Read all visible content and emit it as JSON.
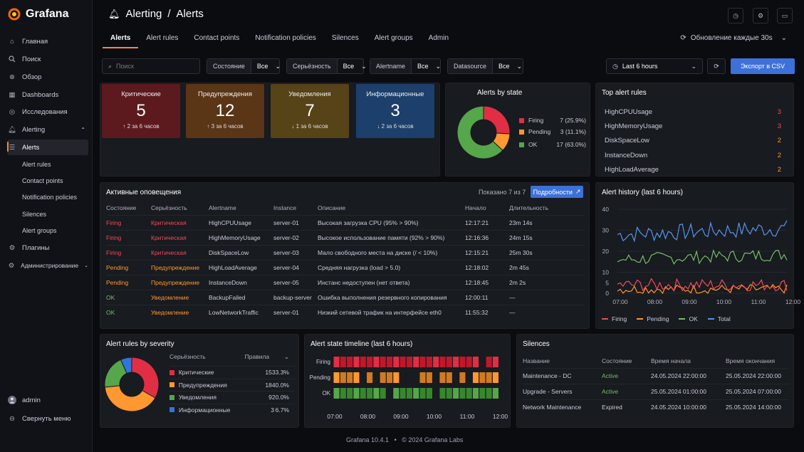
{
  "app": {
    "name": "Grafana",
    "footer_version": "Grafana 10.4.1",
    "footer_sep": "•",
    "footer_copy": "© 2024 Grafana Labs"
  },
  "nav": {
    "items": [
      {
        "label": "Главная",
        "icon": "home-icon"
      },
      {
        "label": "Поиск",
        "icon": "search-icon"
      },
      {
        "label": "Обзор",
        "icon": "plus-circle-icon"
      },
      {
        "label": "Dashboards",
        "icon": "grid-icon"
      },
      {
        "label": "Исследования",
        "icon": "compass-icon"
      },
      {
        "label": "Alerting",
        "icon": "bell-icon"
      }
    ],
    "sub": [
      "Alerts",
      "Alert rules",
      "Contact points",
      "Notification policies",
      "Silences",
      "Alert groups"
    ],
    "plugins": "Плагины",
    "admin": "Администрирование",
    "user": "admin",
    "collapse": "Свернуть меню"
  },
  "header": {
    "section": "Alerting",
    "sep": "/",
    "page": "Alerts"
  },
  "tabs": [
    "Alerts",
    "Alert rules",
    "Contact points",
    "Notification policies",
    "Silences",
    "Alert groups",
    "Admin"
  ],
  "refresh": "Обновление каждые 30s",
  "filters": {
    "search_placeholder": "Поиск",
    "state_label": "Состояние",
    "state_value": "Все",
    "severity_label": "Серьёзность",
    "severity_value": "Все",
    "alertname_label": "Alertname",
    "alertname_value": "Все",
    "datasource_label": "Datasource",
    "datasource_value": "Все",
    "time_range": "Last 6 hours",
    "export": "Экспорт в CSV"
  },
  "stats": [
    {
      "label": "Критические",
      "value": "5",
      "sub": "↑ 2 за 6 часов",
      "color": "#5c1a1f"
    },
    {
      "label": "Предупреждения",
      "value": "12",
      "sub": "↑ 3 за 6 часов",
      "color": "#5a3516"
    },
    {
      "label": "Уведомления",
      "value": "7",
      "sub": "↓ 1 за 6 часов",
      "color": "#574318"
    },
    {
      "label": "Информационные",
      "value": "3",
      "sub": "↓ 2 за 6 часов",
      "color": "#1d3f6b"
    }
  ],
  "alerts_by_state": {
    "title": "Alerts by state",
    "items": [
      {
        "name": "Firing",
        "value": 7,
        "pct": "7 (25.9%)",
        "color": "#e02f44"
      },
      {
        "name": "Pending",
        "value": 3,
        "pct": "3 (11.1%)",
        "color": "#ff9830"
      },
      {
        "name": "OK",
        "value": 17,
        "pct": "17 (63.0%)",
        "color": "#56a64b"
      }
    ]
  },
  "top_rules": {
    "title": "Top alert rules",
    "items": [
      {
        "name": "HighCPUUsage",
        "count": "3",
        "color": "#f2495c"
      },
      {
        "name": "HighMemoryUsage",
        "count": "3",
        "color": "#f2495c"
      },
      {
        "name": "DiskSpaceLow",
        "count": "2",
        "color": "#ff9830"
      },
      {
        "name": "InstanceDown",
        "count": "2",
        "color": "#ff9830"
      },
      {
        "name": "HighLoadAverage",
        "count": "2",
        "color": "#ff9830"
      }
    ]
  },
  "active": {
    "title": "Активные оповещения",
    "shown": "Показано 7 из 7",
    "details": "Подробности",
    "columns": [
      "Состояние",
      "Серьёзность",
      "Alertname",
      "Instance",
      "Описание",
      "Начало",
      "Длительность"
    ],
    "rows": [
      {
        "state": "Firing",
        "sev": "Критическая",
        "name": "HighCPUUsage",
        "inst": "server-01",
        "desc": "Высокая загрузка CPU (95% > 90%)",
        "start": "12:17:21",
        "dur": "23m 14s",
        "sc": "#f2495c",
        "vc": "#f2495c"
      },
      {
        "state": "Firing",
        "sev": "Критическая",
        "name": "HighMemoryUsage",
        "inst": "server-02",
        "desc": "Высокое использование памяти (92% > 90%)",
        "start": "12:16:36",
        "dur": "24m 15s",
        "sc": "#f2495c",
        "vc": "#f2495c"
      },
      {
        "state": "Firing",
        "sev": "Критическая",
        "name": "DiskSpaceLow",
        "inst": "server-03",
        "desc": "Мало свободного места на диске (/ < 10%)",
        "start": "12:15:21",
        "dur": "25m 30s",
        "sc": "#f2495c",
        "vc": "#f2495c"
      },
      {
        "state": "Pending",
        "sev": "Предупреждение",
        "name": "HighLoadAverage",
        "inst": "server-04",
        "desc": "Средняя нагрузка (load > 5.0)",
        "start": "12:18:02",
        "dur": "2m 45s",
        "sc": "#ff9830",
        "vc": "#ff9830"
      },
      {
        "state": "Pending",
        "sev": "Предупреждение",
        "name": "InstanceDown",
        "inst": "server-05",
        "desc": "Инстанс недоступен (нет ответа)",
        "start": "12:18:45",
        "dur": "2m 2s",
        "sc": "#ff9830",
        "vc": "#ff9830"
      },
      {
        "state": "OK",
        "sev": "Уведомление",
        "name": "BackupFailed",
        "inst": "backup-server",
        "desc": "Ошибка выполнения резервного копирования",
        "start": "12:00:11",
        "dur": "—",
        "sc": "#73bf69",
        "vc": "#ff9830"
      },
      {
        "state": "OK",
        "sev": "Уведомление",
        "name": "LowNetworkTraffic",
        "inst": "server-01",
        "desc": "Низкий сетевой трафик на интерфейсе eth0",
        "start": "11:55:32",
        "dur": "—",
        "sc": "#73bf69",
        "vc": "#ff9830"
      }
    ]
  },
  "history": {
    "title": "Alert history (last 6 hours)",
    "y_ticks": [
      "40",
      "30",
      "20",
      "10",
      "5",
      "0"
    ],
    "x_ticks": [
      "07:00",
      "08:00",
      "09:00",
      "10:00",
      "11:00",
      "12:00"
    ],
    "legend": [
      {
        "name": "Firing",
        "color": "#f2495c"
      },
      {
        "name": "Pending",
        "color": "#ff9830"
      },
      {
        "name": "OK",
        "color": "#73bf69"
      },
      {
        "name": "Total",
        "color": "#5794f2"
      }
    ]
  },
  "severity": {
    "title": "Alert rules by severity",
    "col1": "Серьёзность",
    "col2": "Правила",
    "items": [
      {
        "name": "Критические",
        "count": "15",
        "pct": "33.3%",
        "value": 15,
        "color": "#e02f44"
      },
      {
        "name": "Предупреждения",
        "count": "18",
        "pct": "40.0%",
        "value": 18,
        "color": "#ff9830"
      },
      {
        "name": "Уведомления",
        "count": "9",
        "pct": "20.0%",
        "value": 9,
        "color": "#56a64b"
      },
      {
        "name": "Информационные",
        "count": "3",
        "pct": "6.7%",
        "value": 3,
        "color": "#3274d9"
      }
    ]
  },
  "timeline": {
    "title": "Alert state timeline (last 6 hours)",
    "rows": [
      "Firing",
      "Pending",
      "OK"
    ],
    "x_ticks": [
      "07:00",
      "08:00",
      "09:00",
      "10:00",
      "11:00",
      "12:00"
    ]
  },
  "silences": {
    "title": "Silences",
    "columns": [
      "Название",
      "Состояние",
      "Время начала",
      "Время окончания"
    ],
    "rows": [
      {
        "name": "Maintenance - DC",
        "state": "Active",
        "start": "24.05.2024 22:00:00",
        "end": "25.05.2024 22:00:00",
        "color": "#73bf69"
      },
      {
        "name": "Upgrade - Servers",
        "state": "Active",
        "start": "25.05.2024 01:00:00",
        "end": "25.05.2024 07:00:00",
        "color": "#73bf69"
      },
      {
        "name": "Network Maintenance",
        "state": "Expired",
        "start": "24.05.2024 10:00:00",
        "end": "25.05.2024 14:00:00",
        "color": "#ccccdc"
      }
    ]
  }
}
